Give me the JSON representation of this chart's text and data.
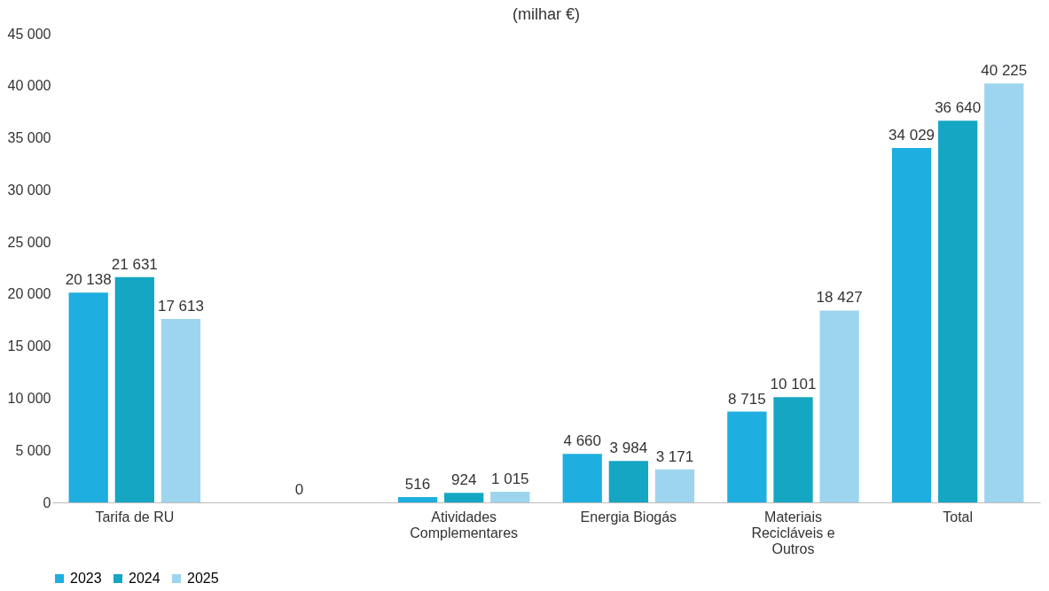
{
  "chart_data": {
    "type": "bar",
    "title": "(milhar €)",
    "categories": [
      "Tarifa de RU",
      null,
      "Atividades Complementares",
      "Energia Biogás",
      "Materiais Recicláveis e Outros",
      "Total"
    ],
    "series": [
      {
        "name": "2023",
        "color": "#1eaee0",
        "values": [
          20138,
          null,
          516,
          4660,
          8715,
          34029
        ],
        "value_labels": [
          "20 138",
          null,
          "516",
          "4 660",
          "8 715",
          "34 029"
        ]
      },
      {
        "name": "2024",
        "color": "#14a6c2",
        "values": [
          21631,
          0,
          924,
          3984,
          10101,
          36640
        ],
        "value_labels": [
          "21 631",
          "0",
          "924",
          "3 984",
          "10 101",
          "36 640"
        ]
      },
      {
        "name": "2025",
        "color": "#9dd5ee",
        "values": [
          17613,
          null,
          1015,
          3171,
          18427,
          40225
        ],
        "value_labels": [
          "17 613",
          null,
          "1 015",
          "3 171",
          "18 427",
          "40 225"
        ]
      }
    ],
    "ylim": [
      0,
      45000
    ],
    "yticks": [
      {
        "value": 0,
        "label": "0"
      },
      {
        "value": 5000,
        "label": "5 000"
      },
      {
        "value": 10000,
        "label": "10 000"
      },
      {
        "value": 15000,
        "label": "15 000"
      },
      {
        "value": 20000,
        "label": "20 000"
      },
      {
        "value": 25000,
        "label": "25 000"
      },
      {
        "value": 30000,
        "label": "30 000"
      },
      {
        "value": 35000,
        "label": "35 000"
      },
      {
        "value": 40000,
        "label": "40 000"
      },
      {
        "value": 45000,
        "label": "45 000"
      }
    ],
    "grid": false,
    "legend": "bottom"
  }
}
